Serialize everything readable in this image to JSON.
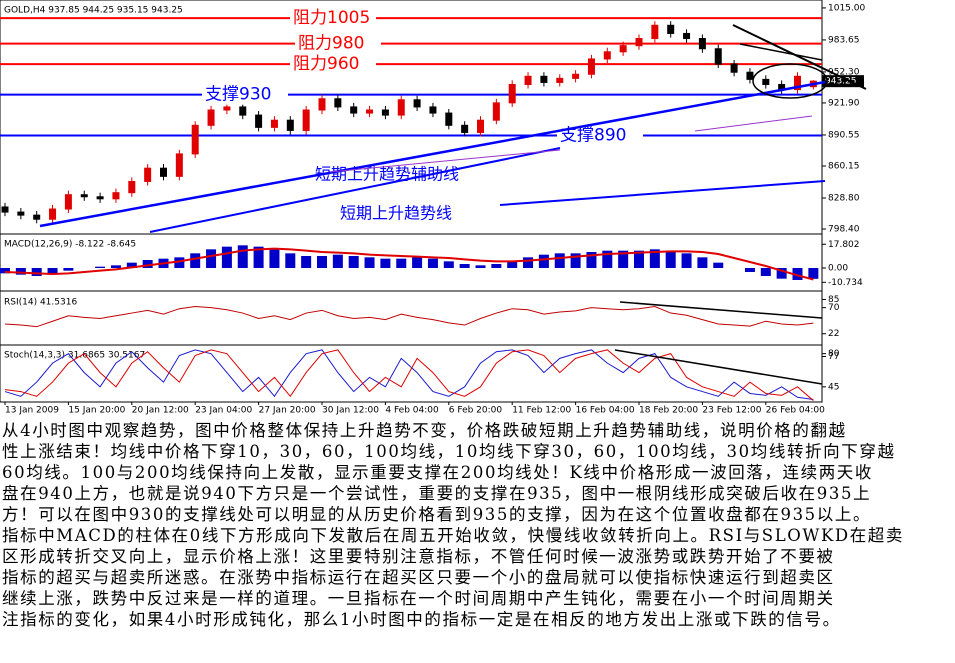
{
  "chart_data": [
    {
      "type": "candlestick",
      "title": "GOLD,H4  937.85 944.25 935.15 943.25",
      "categories": [
        "13 Jan 2009",
        null,
        null,
        null,
        "15 Jan 20:00",
        null,
        null,
        null,
        "20 Jan 12:00",
        null,
        null,
        null,
        "23 Jan 04:00",
        null,
        null,
        null,
        "27 Jan 20:00",
        null,
        null,
        null,
        "30 Jan 12:00",
        null,
        null,
        null,
        "4 Feb 04:00",
        null,
        null,
        null,
        "6 Feb 20:00",
        null,
        null,
        null,
        "11 Feb 12:00",
        null,
        null,
        null,
        "16 Feb 04:00",
        null,
        null,
        null,
        "18 Feb 20:00",
        null,
        null,
        null,
        "23 Feb 12:00",
        null,
        null,
        null,
        "26 Feb 04:00",
        null,
        null,
        null
      ],
      "open": [
        820,
        815,
        812,
        808,
        818,
        832,
        830,
        828,
        834,
        845,
        858,
        850,
        872,
        900,
        915,
        918,
        910,
        898,
        905,
        895,
        915,
        926,
        918,
        912,
        915,
        910,
        925,
        918,
        912,
        900,
        893,
        905,
        922,
        940,
        948,
        942,
        946,
        950,
        965,
        972,
        978,
        985,
        998,
        990,
        985,
        975,
        960,
        952,
        945,
        940,
        935,
        937.85
      ],
      "high": [
        824,
        819,
        816,
        822,
        836,
        836,
        834,
        838,
        849,
        862,
        862,
        876,
        904,
        919,
        922,
        922,
        914,
        909,
        909,
        919,
        930,
        930,
        922,
        919,
        919,
        929,
        929,
        922,
        916,
        904,
        909,
        926,
        944,
        952,
        952,
        950,
        954,
        969,
        976,
        982,
        989,
        1002,
        1002,
        994,
        989,
        979,
        964,
        956,
        949,
        944,
        952,
        944.25
      ],
      "low": [
        811,
        808,
        804,
        804,
        814,
        826,
        824,
        824,
        830,
        841,
        846,
        846,
        868,
        896,
        911,
        906,
        894,
        894,
        891,
        891,
        911,
        914,
        908,
        908,
        906,
        906,
        914,
        908,
        896,
        889,
        889,
        901,
        918,
        936,
        938,
        938,
        942,
        946,
        961,
        968,
        974,
        981,
        986,
        981,
        971,
        956,
        948,
        941,
        936,
        931,
        931,
        935.15
      ],
      "close": [
        815,
        812,
        808,
        818,
        832,
        830,
        828,
        834,
        845,
        858,
        850,
        872,
        900,
        915,
        918,
        910,
        898,
        905,
        895,
        915,
        926,
        918,
        912,
        915,
        910,
        925,
        918,
        912,
        900,
        893,
        905,
        922,
        940,
        948,
        942,
        946,
        950,
        965,
        972,
        978,
        985,
        998,
        990,
        985,
        975,
        960,
        952,
        945,
        940,
        935,
        948,
        943.25
      ],
      "up_color": "#e00000",
      "down_color": "#000000",
      "ylim": [
        794.5,
        1020.8
      ],
      "yticks": [
        {
          "value": 1015,
          "label": "1015.00"
        },
        {
          "value": 983.65,
          "label": "983.65"
        },
        {
          "value": 952.3,
          "label": "952.30"
        },
        {
          "value": 921.9,
          "label": "921.90"
        },
        {
          "value": 890.55,
          "label": "890.55"
        },
        {
          "value": 860.15,
          "label": "860.15"
        },
        {
          "value": 828.8,
          "label": "828.80"
        },
        {
          "value": 798.4,
          "label": "798.40"
        }
      ],
      "levels": [
        {
          "label": "阻力1005",
          "value": 1005,
          "color": "#ff0000"
        },
        {
          "label": "阻力980",
          "value": 980,
          "color": "#ff0000"
        },
        {
          "label": "阻力960",
          "value": 960,
          "color": "#ff0000"
        },
        {
          "label": "支撑930",
          "value": 930,
          "color": "#0000ff"
        },
        {
          "label": "支撑890",
          "value": 890,
          "color": "#0000ff"
        }
      ],
      "annotations": [
        "短期上升趋势辅助线",
        "短期上升趋势线"
      ],
      "last_price": 943.25
    },
    {
      "type": "bar",
      "title": "MACD(12,26,9) -8.122 -8.645",
      "ylim": [
        -16.5,
        24
      ],
      "yticks": [
        17.802,
        {
          "value": 0,
          "label": "0.00"
        },
        -10.734
      ],
      "series": [
        {
          "style": "bar",
          "color": "#0000c8",
          "values": [
            -4,
            -5,
            -6,
            -5,
            -2,
            0,
            1,
            2,
            4,
            6,
            7,
            8,
            11,
            14,
            16,
            17,
            16,
            14,
            11,
            9,
            9,
            10,
            9,
            8,
            7,
            7,
            8,
            7,
            5,
            3,
            2,
            3,
            5,
            8,
            10,
            11,
            11,
            12,
            13,
            13,
            13,
            14,
            13,
            11,
            8,
            4,
            0,
            -3,
            -6,
            -8,
            -9,
            -8.122
          ]
        },
        {
          "style": "line",
          "color": "#e00000",
          "values": [
            -3,
            -3.5,
            -4,
            -4.5,
            -4,
            -3,
            -2,
            -1,
            0.5,
            2,
            3.5,
            5,
            7,
            9,
            11,
            13,
            14,
            14.5,
            14,
            13,
            12,
            11.5,
            11,
            10,
            9.5,
            9,
            8.5,
            8,
            7.5,
            6.5,
            5.5,
            5,
            5,
            5.5,
            6.5,
            7.5,
            8.5,
            9.5,
            10.5,
            11,
            11.5,
            12,
            12.5,
            12.5,
            12,
            10.5,
            7.5,
            4.5,
            1.5,
            -2,
            -5.5,
            -8.645
          ]
        }
      ]
    },
    {
      "type": "line",
      "title": "RSI(14) 41.5316",
      "ylim": [
        5,
        95
      ],
      "yticks": [
        85,
        70,
        22
      ],
      "series": [
        {
          "style": "line",
          "color": "#c00000",
          "values": [
            40,
            38,
            35,
            45,
            55,
            52,
            50,
            55,
            60,
            65,
            58,
            68,
            72,
            70,
            66,
            60,
            50,
            55,
            48,
            60,
            65,
            55,
            50,
            52,
            48,
            58,
            52,
            48,
            42,
            38,
            50,
            60,
            68,
            66,
            58,
            62,
            64,
            70,
            68,
            66,
            68,
            72,
            60,
            56,
            48,
            40,
            38,
            36,
            45,
            40,
            38,
            41.5316
          ]
        }
      ]
    },
    {
      "type": "line",
      "title": "Stoch(14,3,3) 31.6865 30.5167",
      "ylim": [
        29,
        87
      ],
      "yticks": [
        80,
        77,
        45
      ],
      "series": [
        {
          "style": "line",
          "color": "#1a1ad0",
          "values": [
            40,
            35,
            50,
            70,
            80,
            60,
            45,
            70,
            82,
            65,
            50,
            78,
            84,
            80,
            60,
            40,
            55,
            35,
            60,
            80,
            84,
            60,
            40,
            55,
            45,
            75,
            60,
            40,
            35,
            45,
            70,
            82,
            84,
            78,
            60,
            75,
            80,
            84,
            70,
            60,
            75,
            80,
            55,
            45,
            40,
            35,
            50,
            38,
            36,
            45,
            34,
            31.6865
          ]
        },
        {
          "style": "line",
          "color": "#e00000",
          "values": [
            42,
            40,
            35,
            50,
            70,
            80,
            60,
            45,
            70,
            82,
            65,
            50,
            78,
            84,
            80,
            60,
            40,
            55,
            35,
            60,
            80,
            84,
            60,
            40,
            55,
            45,
            75,
            60,
            40,
            35,
            45,
            70,
            82,
            84,
            78,
            60,
            75,
            80,
            84,
            70,
            60,
            75,
            80,
            55,
            45,
            40,
            35,
            50,
            38,
            36,
            45,
            30.5167
          ]
        }
      ]
    }
  ],
  "text": {
    "lines": [
      "从4小时图中观察趋势，图中价格整体保持上升趋势不变，价格跌破短期上升趋势辅助线，说明价格的翻越",
      "性上涨结束！均线中价格下穿10，30，60，100均线，10均线下穿30，60，100均线，30均线转折向下穿越",
      "60均线。100与200均线保持向上发散，显示重要支撑在200均线处！K线中价格形成一波回落，连续两天收",
      "盘在940上方，也就是说940下方只是一个尝试性，重要的支撑在935，图中一根阴线形成突破后收在935上",
      "方！可以在图中930的支撑线处可以明显的从历史价格看到935的支撑，因为在这个位置收盘都在935以上。",
      "指标中MACD的柱体在0线下方形成向下发散后在周五开始收敛，快慢线收敛转折向上。RSI与SLOWKD在超卖",
      "区形成转折交叉向上，显示价格上涨！这里要特别注意指标，不管任何时候一波涨势或跌势开始了不要被",
      "指标的超买与超卖所迷惑。在涨势中指标运行在超买区只要一个小的盘局就可以使指标快速运行到超卖区",
      "继续上涨，跌势中反过来是一样的道理。一旦指标在一个时间周期中产生钝化，需要在小一个时间周期关",
      "注指标的变化，如果4小时形成钝化，那么1小时图中的指标一定是在相反的地方发出上涨或下跌的信号。"
    ]
  }
}
